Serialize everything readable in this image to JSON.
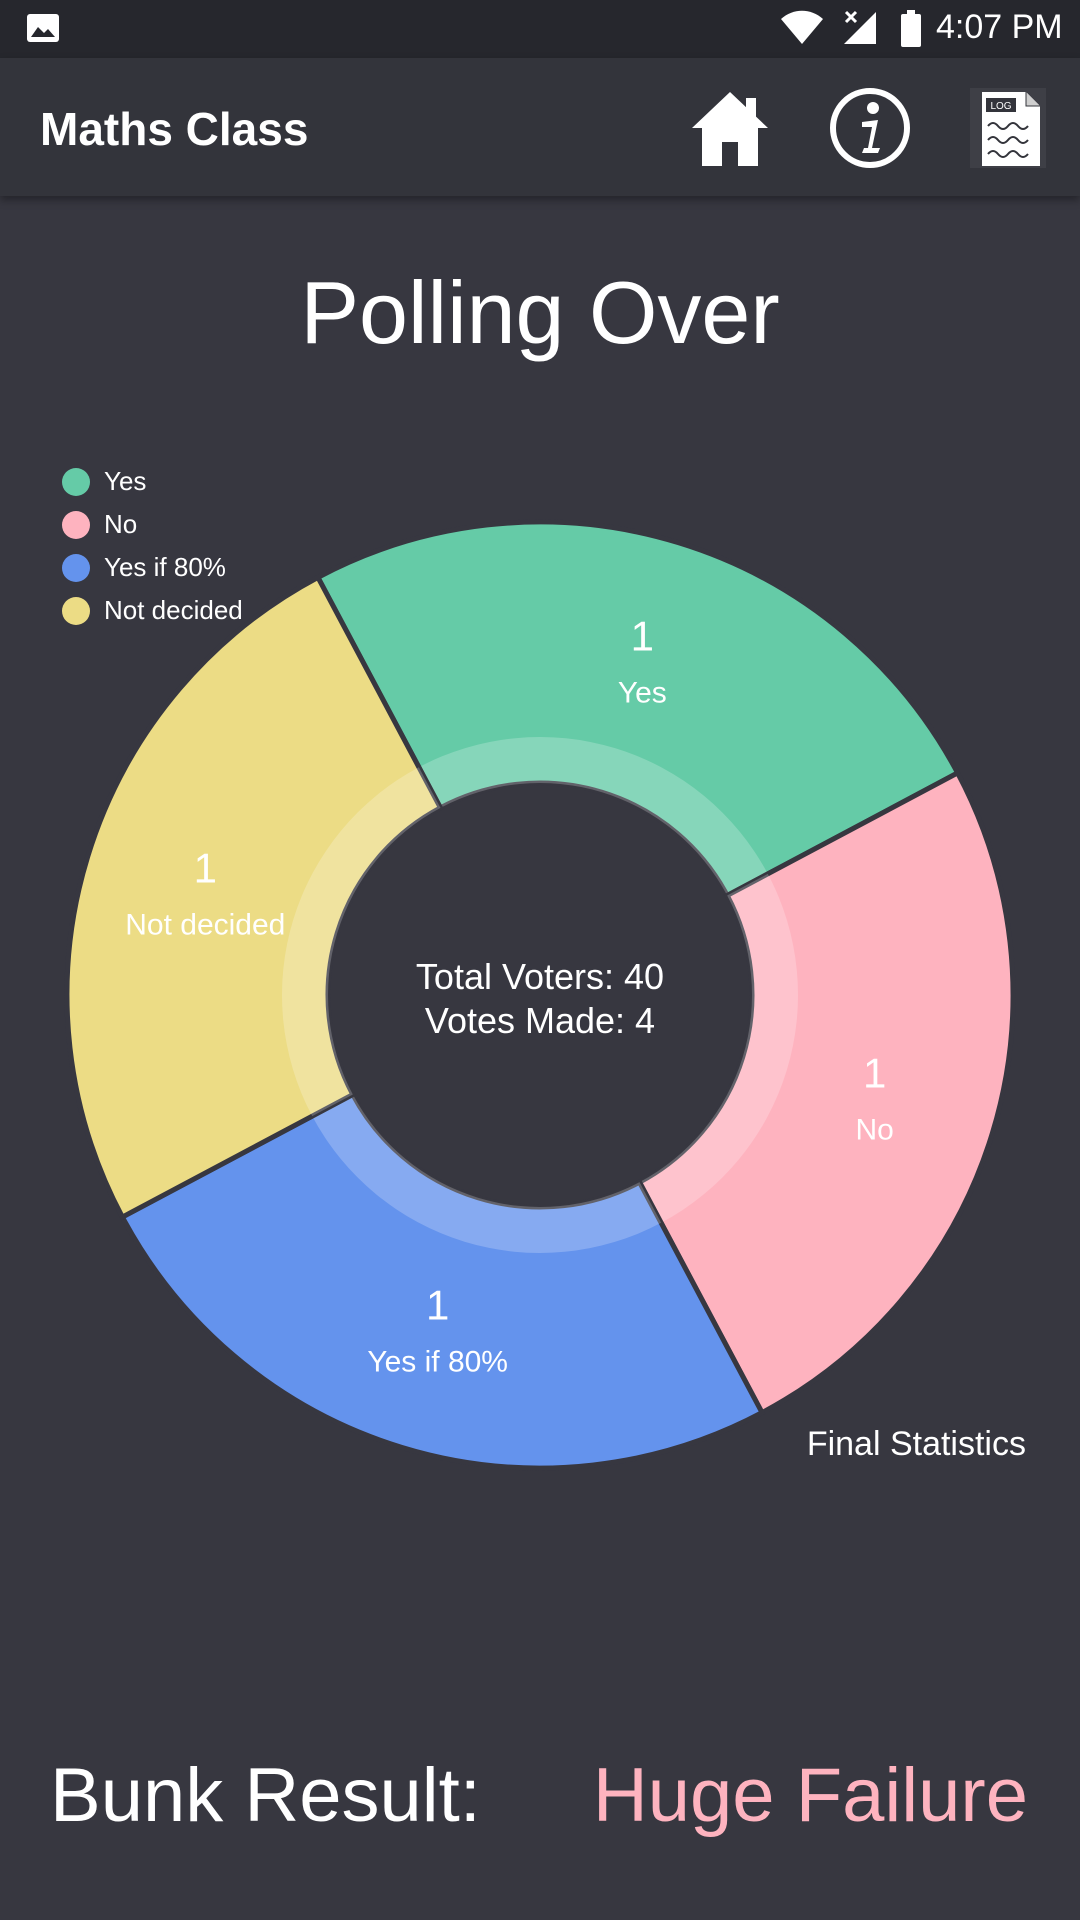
{
  "status_bar": {
    "time": "4:07 PM",
    "icons": [
      "gallery-icon",
      "wifi-icon",
      "signal-icon",
      "battery-icon"
    ]
  },
  "app_bar": {
    "title": "Maths Class",
    "actions": [
      "home-icon",
      "info-icon",
      "log-icon"
    ],
    "log_icon_text": "LOG"
  },
  "poll": {
    "title": "Polling Over",
    "description": "Final Statistics"
  },
  "chart_data": {
    "type": "pie",
    "style": "donut",
    "categories": [
      "Yes",
      "No",
      "Yes if 80%",
      "Not decided"
    ],
    "values": [
      1,
      1,
      1,
      1
    ],
    "colors": [
      "#65cba7",
      "#feb3bf",
      "#6493ed",
      "#ecdc85"
    ],
    "center_text": [
      "Total Voters: 40",
      "Votes Made: 4"
    ],
    "legend_position": "top-left"
  },
  "result": {
    "label": "Bunk Result:",
    "value": "Huge Failure",
    "value_color": "#feb3bf"
  },
  "colors": {
    "background": "#373740",
    "app_bar": "#33343b",
    "status_bar": "#26272d"
  }
}
